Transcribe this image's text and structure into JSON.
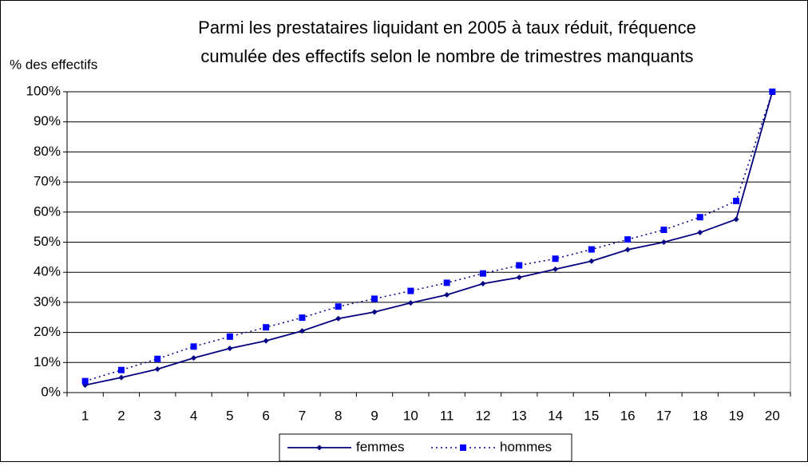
{
  "chart_data": {
    "type": "line",
    "title": [
      "Parmi les prestataires liquidant en 2005 à taux réduit, fréquence",
      "cumulée des effectifs selon le nombre de trimestres manquants"
    ],
    "y_label": "% des effectifs",
    "categories": [
      "1",
      "2",
      "3",
      "4",
      "5",
      "6",
      "7",
      "8",
      "9",
      "10",
      "11",
      "12",
      "13",
      "14",
      "15",
      "16",
      "17",
      "18",
      "19",
      "20"
    ],
    "series": [
      {
        "name": "femmes",
        "color": "#000080",
        "style": "solid",
        "marker": "diamond",
        "values": [
          2.5,
          5,
          7.8,
          11.5,
          14.7,
          17.2,
          20.5,
          24.6,
          26.8,
          29.8,
          32.5,
          36.2,
          38.3,
          41,
          43.7,
          47.5,
          50,
          53.2,
          57.6,
          100
        ]
      },
      {
        "name": "hommes",
        "color": "#0000ff",
        "style": "dotted",
        "marker": "square",
        "values": [
          3.8,
          7.5,
          11.2,
          15.3,
          18.6,
          21.7,
          24.9,
          28.6,
          31.2,
          33.8,
          36.5,
          39.6,
          42.3,
          44.5,
          47.6,
          50.9,
          54.1,
          58.3,
          63.7,
          100
        ]
      }
    ],
    "ylim": [
      0,
      100
    ],
    "yticks": [
      {
        "value": 0,
        "label": "0%"
      },
      {
        "value": 10,
        "label": "10%"
      },
      {
        "value": 20,
        "label": "20%"
      },
      {
        "value": 30,
        "label": "30%"
      },
      {
        "value": 40,
        "label": "40%"
      },
      {
        "value": 50,
        "label": "50%"
      },
      {
        "value": 60,
        "label": "60%"
      },
      {
        "value": 70,
        "label": "70%"
      },
      {
        "value": 80,
        "label": "80%"
      },
      {
        "value": 90,
        "label": "90%"
      },
      {
        "value": 100,
        "label": "100%"
      }
    ],
    "grid": true,
    "legend": "bottom"
  }
}
